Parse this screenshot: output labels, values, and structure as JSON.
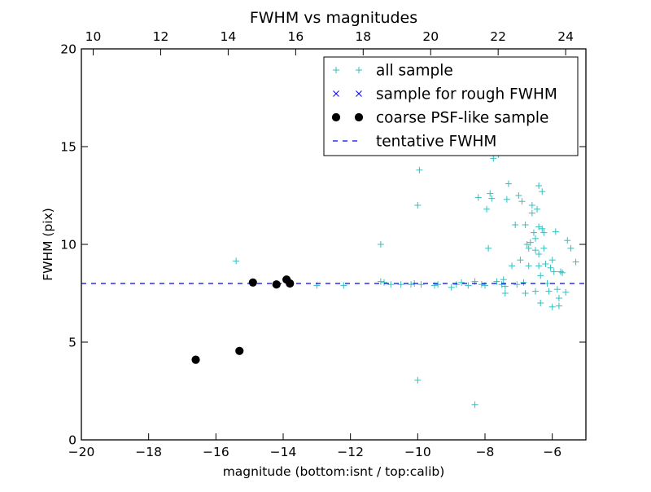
{
  "chart_data": {
    "type": "scatter",
    "title": "FWHM vs magnitudes",
    "xlabel": "magnitude (bottom:isnt / top:calib)",
    "ylabel": "FWHM (pix)",
    "xlim": [
      -20,
      -5
    ],
    "ylim": [
      0,
      20
    ],
    "x_ticks": [
      -20,
      -18,
      -16,
      -14,
      -12,
      -10,
      -8,
      -6
    ],
    "x_tick_labels": [
      "−20",
      "−18",
      "−16",
      "−14",
      "−12",
      "−10",
      "−8",
      "−6"
    ],
    "y_ticks": [
      0,
      5,
      10,
      15,
      20
    ],
    "y_tick_labels": [
      "0",
      "5",
      "10",
      "15",
      "20"
    ],
    "top_axis": {
      "xlim": [
        9.65,
        24.6
      ],
      "ticks": [
        10,
        12,
        14,
        16,
        18,
        20,
        22,
        24
      ],
      "tick_labels": [
        "10",
        "12",
        "14",
        "16",
        "18",
        "20",
        "22",
        "24"
      ]
    },
    "grid": false,
    "legend_position": "top-right",
    "colors": {
      "all_sample": "#33bfbf",
      "rough": "#0000ff",
      "coarse": "#000000",
      "tentative": "#0000ff"
    },
    "series": [
      {
        "name": "all sample",
        "marker": "+",
        "points": [
          [
            -15.4,
            9.15
          ],
          [
            -14.9,
            8.05
          ],
          [
            -14.2,
            7.95
          ],
          [
            -13.9,
            8.2
          ],
          [
            -13.8,
            8.0
          ],
          [
            -13.0,
            7.9
          ],
          [
            -12.2,
            7.9
          ],
          [
            -11.1,
            10.0
          ],
          [
            -11.1,
            8.1
          ],
          [
            -11.0,
            8.05
          ],
          [
            -10.8,
            7.95
          ],
          [
            -10.5,
            7.95
          ],
          [
            -10.2,
            7.95
          ],
          [
            -10.1,
            8.0
          ],
          [
            -10.0,
            12.0
          ],
          [
            -9.95,
            13.8
          ],
          [
            -10.0,
            3.05
          ],
          [
            -9.9,
            7.95
          ],
          [
            -9.5,
            7.9
          ],
          [
            -9.4,
            7.95
          ],
          [
            -9.0,
            7.8
          ],
          [
            -8.85,
            7.95
          ],
          [
            -8.7,
            8.05
          ],
          [
            -8.5,
            7.9
          ],
          [
            -8.3,
            8.1
          ],
          [
            -8.3,
            1.8
          ],
          [
            -8.2,
            12.4
          ],
          [
            -8.1,
            7.95
          ],
          [
            -8.0,
            7.9
          ],
          [
            -7.95,
            11.8
          ],
          [
            -7.9,
            9.8
          ],
          [
            -7.85,
            12.6
          ],
          [
            -7.8,
            12.35
          ],
          [
            -7.75,
            14.4
          ],
          [
            -7.65,
            8.1
          ],
          [
            -7.6,
            14.6
          ],
          [
            -7.5,
            7.95
          ],
          [
            -7.45,
            8.2
          ],
          [
            -7.4,
            7.5
          ],
          [
            -7.4,
            7.85
          ],
          [
            -7.35,
            12.3
          ],
          [
            -7.3,
            13.1
          ],
          [
            -7.2,
            8.9
          ],
          [
            -7.1,
            11.0
          ],
          [
            -7.05,
            7.95
          ],
          [
            -7.0,
            12.5
          ],
          [
            -6.95,
            9.2
          ],
          [
            -6.9,
            12.2
          ],
          [
            -6.85,
            8.05
          ],
          [
            -6.8,
            11.0
          ],
          [
            -6.8,
            7.5
          ],
          [
            -6.75,
            10.0
          ],
          [
            -6.7,
            9.8
          ],
          [
            -6.7,
            8.9
          ],
          [
            -6.65,
            10.1
          ],
          [
            -6.6,
            12.0
          ],
          [
            -6.6,
            11.6
          ],
          [
            -6.55,
            10.6
          ],
          [
            -6.5,
            10.3
          ],
          [
            -6.5,
            9.7
          ],
          [
            -6.5,
            7.6
          ],
          [
            -6.45,
            11.8
          ],
          [
            -6.4,
            13.0
          ],
          [
            -6.4,
            10.9
          ],
          [
            -6.4,
            9.5
          ],
          [
            -6.4,
            8.9
          ],
          [
            -6.35,
            7.0
          ],
          [
            -6.35,
            8.4
          ],
          [
            -6.3,
            12.7
          ],
          [
            -6.3,
            10.8
          ],
          [
            -6.25,
            10.6
          ],
          [
            -6.25,
            9.8
          ],
          [
            -6.2,
            9.0
          ],
          [
            -6.15,
            8.0
          ],
          [
            -6.1,
            7.6
          ],
          [
            -6.05,
            8.8
          ],
          [
            -6.0,
            9.2
          ],
          [
            -6.0,
            6.8
          ],
          [
            -5.95,
            8.6
          ],
          [
            -5.9,
            10.65
          ],
          [
            -5.85,
            7.7
          ],
          [
            -5.8,
            7.25
          ],
          [
            -5.8,
            6.85
          ],
          [
            -5.75,
            8.6
          ],
          [
            -5.7,
            8.55
          ],
          [
            -5.6,
            7.55
          ],
          [
            -5.55,
            10.2
          ],
          [
            -5.45,
            9.8
          ],
          [
            -5.3,
            9.1
          ]
        ]
      },
      {
        "name": "sample for rough FWHM",
        "marker": "x",
        "points": [
          [
            -16.6,
            4.1
          ],
          [
            -15.3,
            4.55
          ],
          [
            -14.9,
            8.05
          ],
          [
            -14.2,
            7.95
          ],
          [
            -13.9,
            8.2
          ],
          [
            -13.8,
            8.0
          ]
        ]
      },
      {
        "name": "coarse PSF-like sample",
        "marker": "o",
        "points": [
          [
            -16.6,
            4.1
          ],
          [
            -15.3,
            4.55
          ],
          [
            -14.9,
            8.05
          ],
          [
            -14.2,
            7.95
          ],
          [
            -13.9,
            8.2
          ],
          [
            -13.8,
            8.0
          ]
        ]
      },
      {
        "name": "tentative FWHM",
        "marker": "dashed-line",
        "y": 8.0
      }
    ]
  }
}
